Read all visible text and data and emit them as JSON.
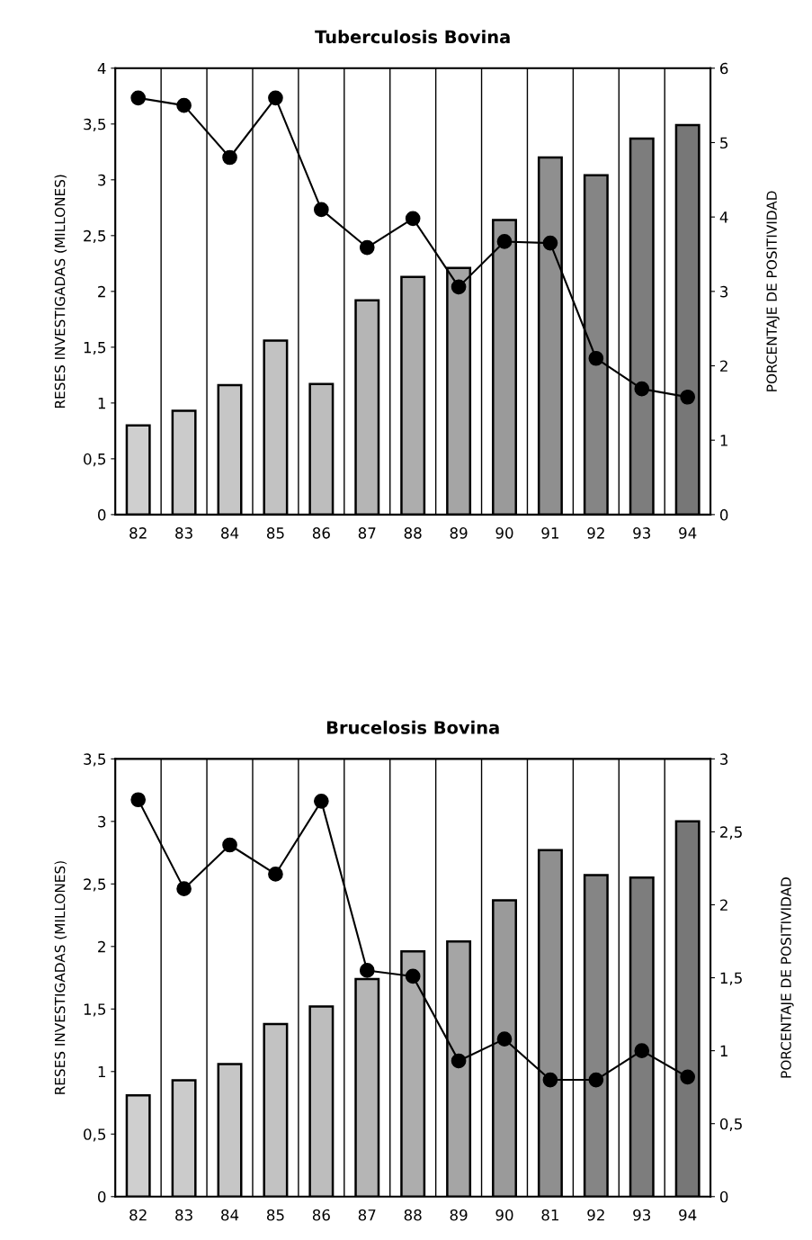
{
  "chart_data": [
    {
      "type": "bar",
      "title": "Tuberculosis Bovina",
      "ylabel": "RESES INVESTIGADAS (MILLONES)",
      "y2label": "PORCENTAJE DE POSITIVIDAD",
      "categories": [
        "82",
        "83",
        "84",
        "85",
        "86",
        "87",
        "88",
        "89",
        "90",
        "91",
        "92",
        "93",
        "94"
      ],
      "series": [
        {
          "colors": [
            "#cfcfcf",
            "#cbcbcb",
            "#c6c6c6",
            "#c2c2c2",
            "#bdbdbd",
            "#b5b5b5",
            "#adadad",
            "#a5a5a5",
            "#9a9a9a",
            "#8f8f8f",
            "#858585",
            "#7d7d7d",
            "#777777"
          ],
          "values": [
            0.8,
            0.93,
            1.16,
            1.56,
            1.17,
            1.92,
            2.13,
            2.21,
            2.64,
            3.2,
            3.04,
            3.37,
            3.49
          ]
        },
        {
          "type": "line",
          "axis": "y2",
          "color": "#000000",
          "marker": "circle",
          "line_style": "solid",
          "values": [
            5.6,
            5.5,
            4.8,
            5.6,
            4.1,
            3.59,
            3.98,
            3.06,
            3.67,
            3.65,
            2.1,
            1.69,
            1.58
          ]
        }
      ],
      "ylim": [
        0,
        4
      ],
      "yticks": [
        0,
        {
          "value": 0.5,
          "label": "0,5"
        },
        1,
        {
          "value": 1.5,
          "label": "1,5"
        },
        2,
        {
          "value": 2.5,
          "label": "2,5"
        },
        3,
        {
          "value": 3.5,
          "label": "3,5"
        },
        4
      ],
      "y2lim": [
        0,
        6
      ],
      "y2ticks": [
        0,
        1,
        2,
        3,
        4,
        5,
        6
      ],
      "grid": "x",
      "legend": false
    },
    {
      "type": "bar",
      "title": "Brucelosis Bovina",
      "ylabel": "RESES INVESTIGADAS (MILLONES)",
      "y2label": "PORCENTAJE DE POSITIVIDAD",
      "categories": [
        "82",
        "83",
        "84",
        "85",
        "86",
        "87",
        "88",
        "89",
        "90",
        "81",
        "92",
        "93",
        "94"
      ],
      "series": [
        {
          "colors": [
            "#cfcfcf",
            "#cbcbcb",
            "#c6c6c6",
            "#c2c2c2",
            "#bdbdbd",
            "#b5b5b5",
            "#adadad",
            "#a5a5a5",
            "#9a9a9a",
            "#8f8f8f",
            "#858585",
            "#7d7d7d",
            "#777777"
          ],
          "values": [
            0.81,
            0.93,
            1.06,
            1.38,
            1.52,
            1.74,
            1.96,
            2.04,
            2.37,
            2.77,
            2.57,
            2.55,
            3.0
          ]
        },
        {
          "type": "line",
          "axis": "y2",
          "color": "#000000",
          "marker": "circle",
          "line_style": "solid",
          "values": [
            2.72,
            2.11,
            2.41,
            2.21,
            2.71,
            1.55,
            1.51,
            0.93,
            1.08,
            0.8,
            0.8,
            1.0,
            0.82
          ]
        }
      ],
      "ylim": [
        0,
        3.5
      ],
      "yticks": [
        0,
        {
          "value": 0.5,
          "label": "0,5"
        },
        1,
        {
          "value": 1.5,
          "label": "1,5"
        },
        2,
        {
          "value": 2.5,
          "label": "2,5"
        },
        3,
        {
          "value": 3.5,
          "label": "3,5"
        }
      ],
      "y2lim": [
        0,
        3
      ],
      "y2ticks": [
        0,
        {
          "value": 0.5,
          "label": "0,5"
        },
        1,
        {
          "value": 1.5,
          "label": "1,5"
        },
        2,
        {
          "value": 2.5,
          "label": "2,5"
        },
        3
      ],
      "grid": "x",
      "legend": false
    }
  ]
}
